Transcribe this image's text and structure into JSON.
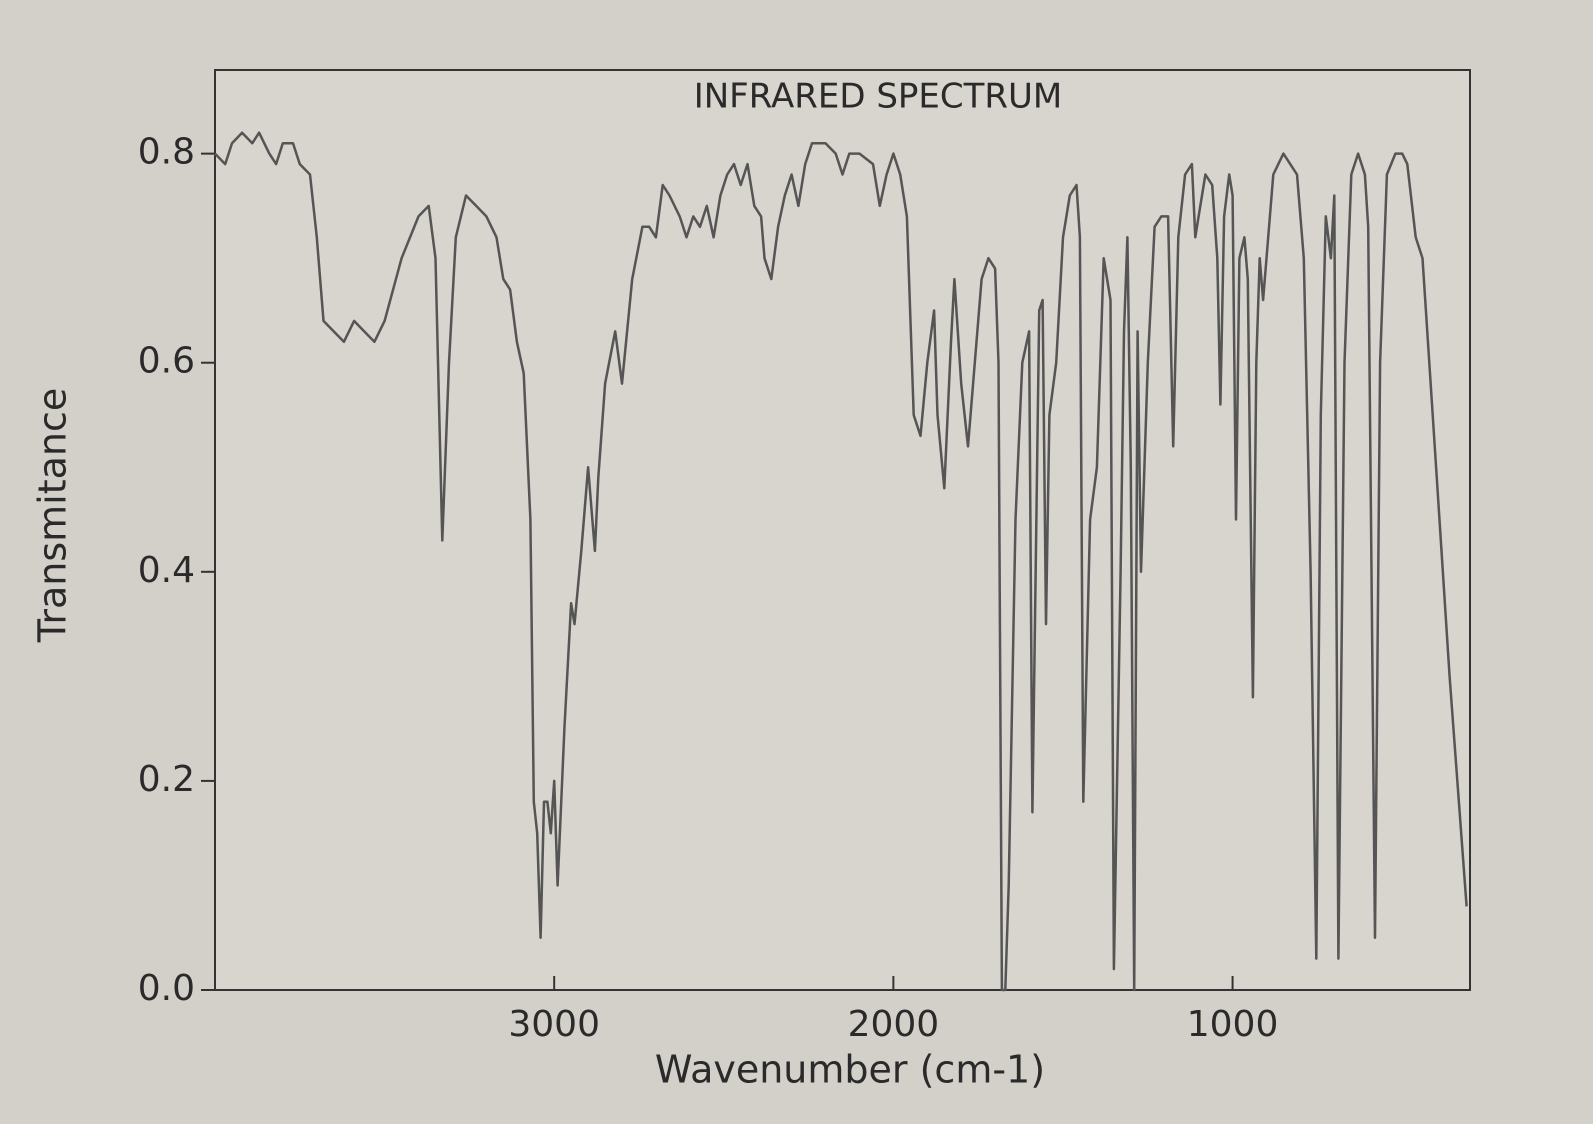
{
  "chart_data": {
    "type": "line",
    "title": "INFRARED SPECTRUM",
    "xlabel": "Wavenumber (cm-1)",
    "ylabel": "Transmitance",
    "color": "#555555",
    "xlim": [
      4000,
      300
    ],
    "xticks": [
      3000,
      2000,
      1000
    ],
    "ylim": [
      0,
      0.88
    ],
    "yticks": [
      {
        "value": 0,
        "label": "0.0"
      },
      0.2,
      0.4,
      0.6,
      0.8
    ],
    "x": [
      4000,
      3970,
      3950,
      3920,
      3890,
      3870,
      3840,
      3820,
      3800,
      3770,
      3750,
      3720,
      3700,
      3680,
      3650,
      3620,
      3590,
      3560,
      3530,
      3500,
      3450,
      3400,
      3370,
      3350,
      3330,
      3310,
      3290,
      3260,
      3230,
      3200,
      3170,
      3150,
      3130,
      3110,
      3090,
      3070,
      3060,
      3050,
      3040,
      3030,
      3020,
      3010,
      3000,
      2990,
      2970,
      2950,
      2940,
      2920,
      2900,
      2880,
      2870,
      2850,
      2820,
      2800,
      2770,
      2740,
      2720,
      2700,
      2680,
      2660,
      2630,
      2610,
      2590,
      2570,
      2550,
      2530,
      2510,
      2490,
      2470,
      2450,
      2430,
      2410,
      2390,
      2380,
      2360,
      2340,
      2320,
      2300,
      2280,
      2260,
      2240,
      2200,
      2170,
      2150,
      2130,
      2100,
      2060,
      2040,
      2020,
      2000,
      1980,
      1960,
      1940,
      1920,
      1900,
      1880,
      1870,
      1850,
      1830,
      1820,
      1800,
      1780,
      1760,
      1740,
      1720,
      1700,
      1690,
      1680,
      1670,
      1660,
      1640,
      1620,
      1600,
      1590,
      1570,
      1560,
      1550,
      1540,
      1520,
      1500,
      1480,
      1460,
      1450,
      1440,
      1420,
      1400,
      1380,
      1360,
      1350,
      1330,
      1320,
      1310,
      1300,
      1290,
      1280,
      1270,
      1250,
      1230,
      1210,
      1190,
      1175,
      1160,
      1140,
      1120,
      1110,
      1100,
      1080,
      1060,
      1045,
      1036,
      1025,
      1010,
      1000,
      990,
      980,
      965,
      955,
      940,
      930,
      920,
      910,
      900,
      880,
      850,
      830,
      810,
      790,
      770,
      753,
      740,
      725,
      710,
      700,
      688,
      670,
      650,
      630,
      610,
      600,
      580,
      565,
      545,
      520,
      500,
      485,
      460,
      440,
      400,
      360,
      310
    ],
    "values": [
      0.8,
      0.79,
      0.81,
      0.82,
      0.81,
      0.82,
      0.8,
      0.79,
      0.81,
      0.81,
      0.79,
      0.78,
      0.72,
      0.64,
      0.63,
      0.62,
      0.64,
      0.63,
      0.62,
      0.64,
      0.7,
      0.74,
      0.75,
      0.7,
      0.43,
      0.6,
      0.72,
      0.76,
      0.75,
      0.74,
      0.72,
      0.68,
      0.67,
      0.62,
      0.59,
      0.45,
      0.18,
      0.15,
      0.05,
      0.18,
      0.18,
      0.15,
      0.2,
      0.1,
      0.25,
      0.37,
      0.35,
      0.42,
      0.5,
      0.42,
      0.49,
      0.58,
      0.63,
      0.58,
      0.68,
      0.73,
      0.73,
      0.72,
      0.77,
      0.76,
      0.74,
      0.72,
      0.74,
      0.73,
      0.75,
      0.72,
      0.76,
      0.78,
      0.79,
      0.77,
      0.79,
      0.75,
      0.74,
      0.7,
      0.68,
      0.73,
      0.76,
      0.78,
      0.75,
      0.79,
      0.81,
      0.81,
      0.8,
      0.78,
      0.8,
      0.8,
      0.79,
      0.75,
      0.78,
      0.8,
      0.78,
      0.74,
      0.55,
      0.53,
      0.6,
      0.65,
      0.55,
      0.48,
      0.62,
      0.68,
      0.58,
      0.52,
      0.6,
      0.68,
      0.7,
      0.69,
      0.6,
      0.0,
      0.0,
      0.1,
      0.45,
      0.6,
      0.63,
      0.17,
      0.65,
      0.66,
      0.35,
      0.55,
      0.6,
      0.72,
      0.76,
      0.77,
      0.72,
      0.18,
      0.45,
      0.5,
      0.7,
      0.66,
      0.02,
      0.4,
      0.63,
      0.72,
      0.5,
      0.0,
      0.63,
      0.4,
      0.6,
      0.73,
      0.74,
      0.74,
      0.52,
      0.72,
      0.78,
      0.79,
      0.72,
      0.74,
      0.78,
      0.77,
      0.7,
      0.56,
      0.74,
      0.78,
      0.76,
      0.45,
      0.7,
      0.72,
      0.68,
      0.28,
      0.6,
      0.7,
      0.66,
      0.7,
      0.78,
      0.8,
      0.79,
      0.78,
      0.7,
      0.4,
      0.03,
      0.55,
      0.74,
      0.7,
      0.76,
      0.03,
      0.6,
      0.78,
      0.8,
      0.78,
      0.73,
      0.05,
      0.6,
      0.78,
      0.8,
      0.8,
      0.79,
      0.72,
      0.7,
      0.5,
      0.3,
      0.08
    ]
  }
}
